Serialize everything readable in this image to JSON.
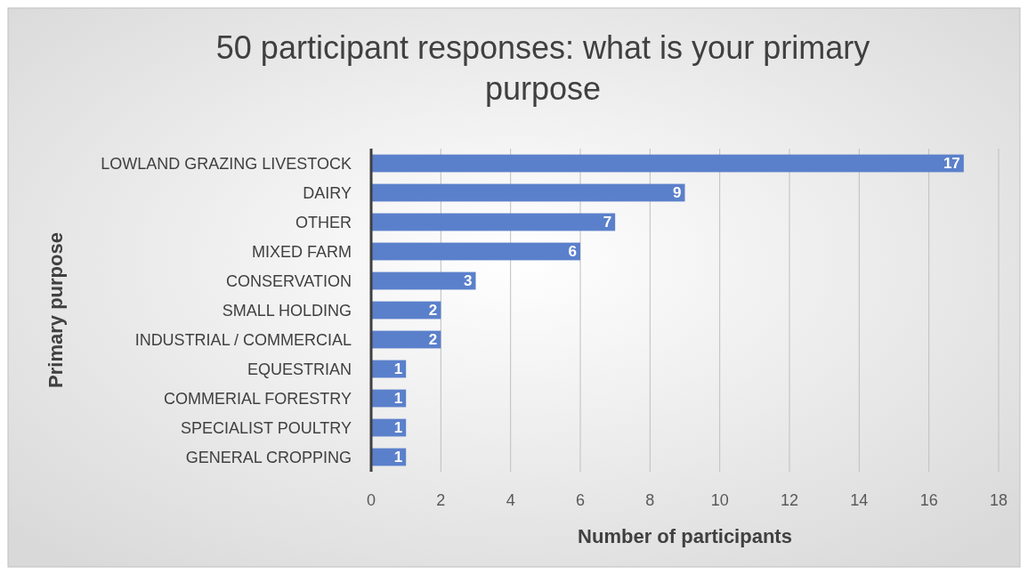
{
  "chart_data": {
    "type": "bar",
    "orientation": "horizontal",
    "title": "50 participant responses: what is your primary purpose",
    "xlabel": "Number of participants",
    "ylabel": "Primary purpose",
    "categories": [
      "LOWLAND GRAZING LIVESTOCK",
      "DAIRY",
      "OTHER",
      "MIXED FARM",
      "CONSERVATION",
      "SMALL HOLDING",
      "INDUSTRIAL / COMMERCIAL",
      "EQUESTRIAN",
      "COMMERIAL FORESTRY",
      "SPECIALIST POULTRY",
      "GENERAL CROPPING"
    ],
    "values": [
      17,
      9,
      7,
      6,
      3,
      2,
      2,
      1,
      1,
      1,
      1
    ],
    "color": "#5b80cb",
    "xlim": [
      0,
      18
    ],
    "xticks": [
      0,
      2,
      4,
      6,
      8,
      10,
      12,
      14,
      16,
      18
    ],
    "grid": "x",
    "data_labels": true
  }
}
